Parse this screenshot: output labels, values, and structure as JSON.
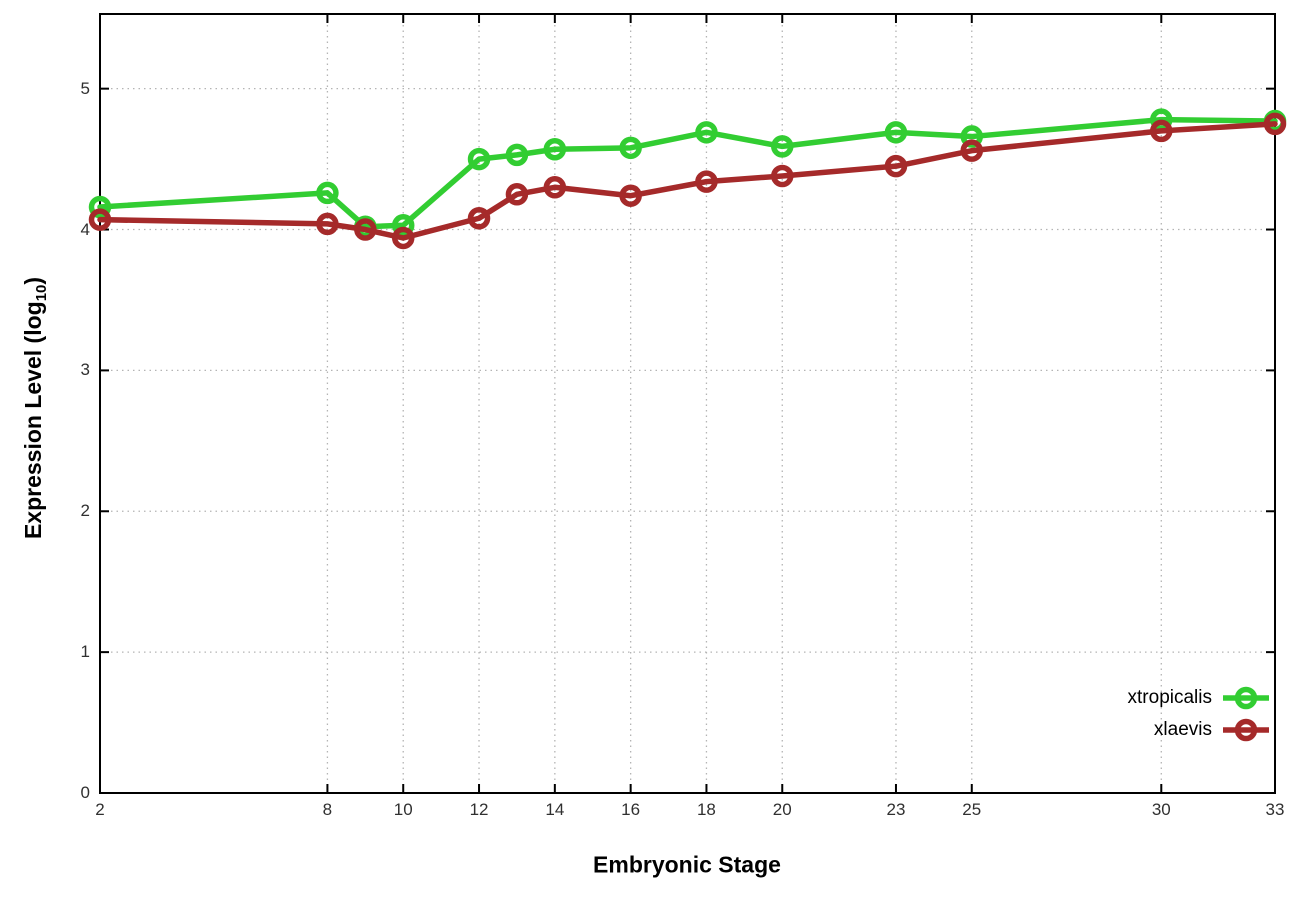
{
  "chart_data": {
    "type": "line",
    "title": "",
    "xlabel": "Embryonic Stage",
    "ylabel": "Expression Level (log10)",
    "ylabel_parts": {
      "prefix": "Expression Level (log",
      "sub": "10",
      "suffix": ")"
    },
    "x": [
      2,
      8,
      9,
      10,
      12,
      13,
      14,
      16,
      18,
      20,
      23,
      25,
      30,
      33
    ],
    "xticks": [
      2,
      8,
      10,
      12,
      14,
      16,
      18,
      20,
      23,
      25,
      30,
      33
    ],
    "yticks": [
      0,
      1,
      2,
      3,
      4,
      5
    ],
    "xlim": [
      2,
      33
    ],
    "ylim": [
      0,
      5.53
    ],
    "grid": true,
    "grid_style": "dotted",
    "legend_position": "bottom-right",
    "series": [
      {
        "name": "xtropicalis",
        "color": "#32cd32",
        "marker": "open-circle",
        "values": [
          4.16,
          4.26,
          4.02,
          4.03,
          4.5,
          4.53,
          4.57,
          4.58,
          4.69,
          4.59,
          4.69,
          4.66,
          4.78,
          4.77
        ]
      },
      {
        "name": "xlaevis",
        "color": "#a52a2a",
        "marker": "open-circle",
        "values": [
          4.07,
          4.04,
          4.0,
          3.94,
          4.08,
          4.25,
          4.3,
          4.24,
          4.34,
          4.38,
          4.45,
          4.56,
          4.7,
          4.75
        ]
      }
    ]
  }
}
